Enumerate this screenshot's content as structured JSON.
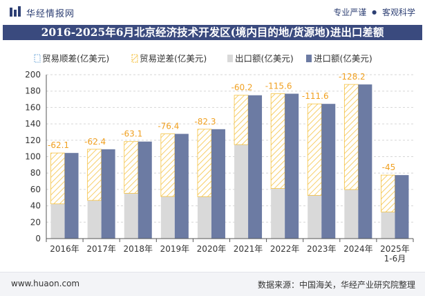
{
  "header": {
    "brand": "华经情报网",
    "tagline_left": "专业严谨",
    "tagline_sep": "●",
    "tagline_right": "客观科学"
  },
  "chart_data": {
    "type": "bar",
    "title": "2016-2025年6月北京经济技术开发区(境内目的地/货源地)进出口差额",
    "categories": [
      "2016年",
      "2017年",
      "2018年",
      "2019年",
      "2020年",
      "2021年",
      "2022年",
      "2023年",
      "2024年",
      "2025年\n1-6月"
    ],
    "series": [
      {
        "name": "贸易顺差(亿美元)",
        "values": [
          null,
          null,
          null,
          null,
          null,
          null,
          null,
          null,
          null,
          null
        ]
      },
      {
        "name": "贸易逆差(亿美元)",
        "values": [
          -62.1,
          -62.4,
          -63.1,
          -76.4,
          -82.3,
          -60.2,
          -115.6,
          -111.6,
          -128.2,
          -45
        ]
      },
      {
        "name": "出口额(亿美元)",
        "values": [
          42.4,
          46.6,
          55.3,
          51.4,
          51.2,
          114.7,
          61.2,
          52.8,
          59.9,
          32.5
        ]
      },
      {
        "name": "进口额(亿美元)",
        "values": [
          104.5,
          109.0,
          118.4,
          127.8,
          133.5,
          174.9,
          176.8,
          164.4,
          188.1,
          77.5
        ]
      }
    ],
    "ylim": [
      0,
      200
    ],
    "yticks": [
      0,
      20,
      40,
      60,
      80,
      100,
      120,
      140,
      160,
      180,
      200
    ],
    "xlabel": "",
    "ylabel": "",
    "grid": "horizontal dashed",
    "legend_position": "top-left",
    "colors": {
      "surplus": "#7fb2dd",
      "deficit_hatch": "#f5c242",
      "export": "#d9d9d9",
      "import": "#6c7ba3",
      "label": "#f0a020"
    }
  },
  "footer": {
    "url": "www.huaon.com",
    "source": "数据来源：中国海关，华经产业研究院整理"
  }
}
